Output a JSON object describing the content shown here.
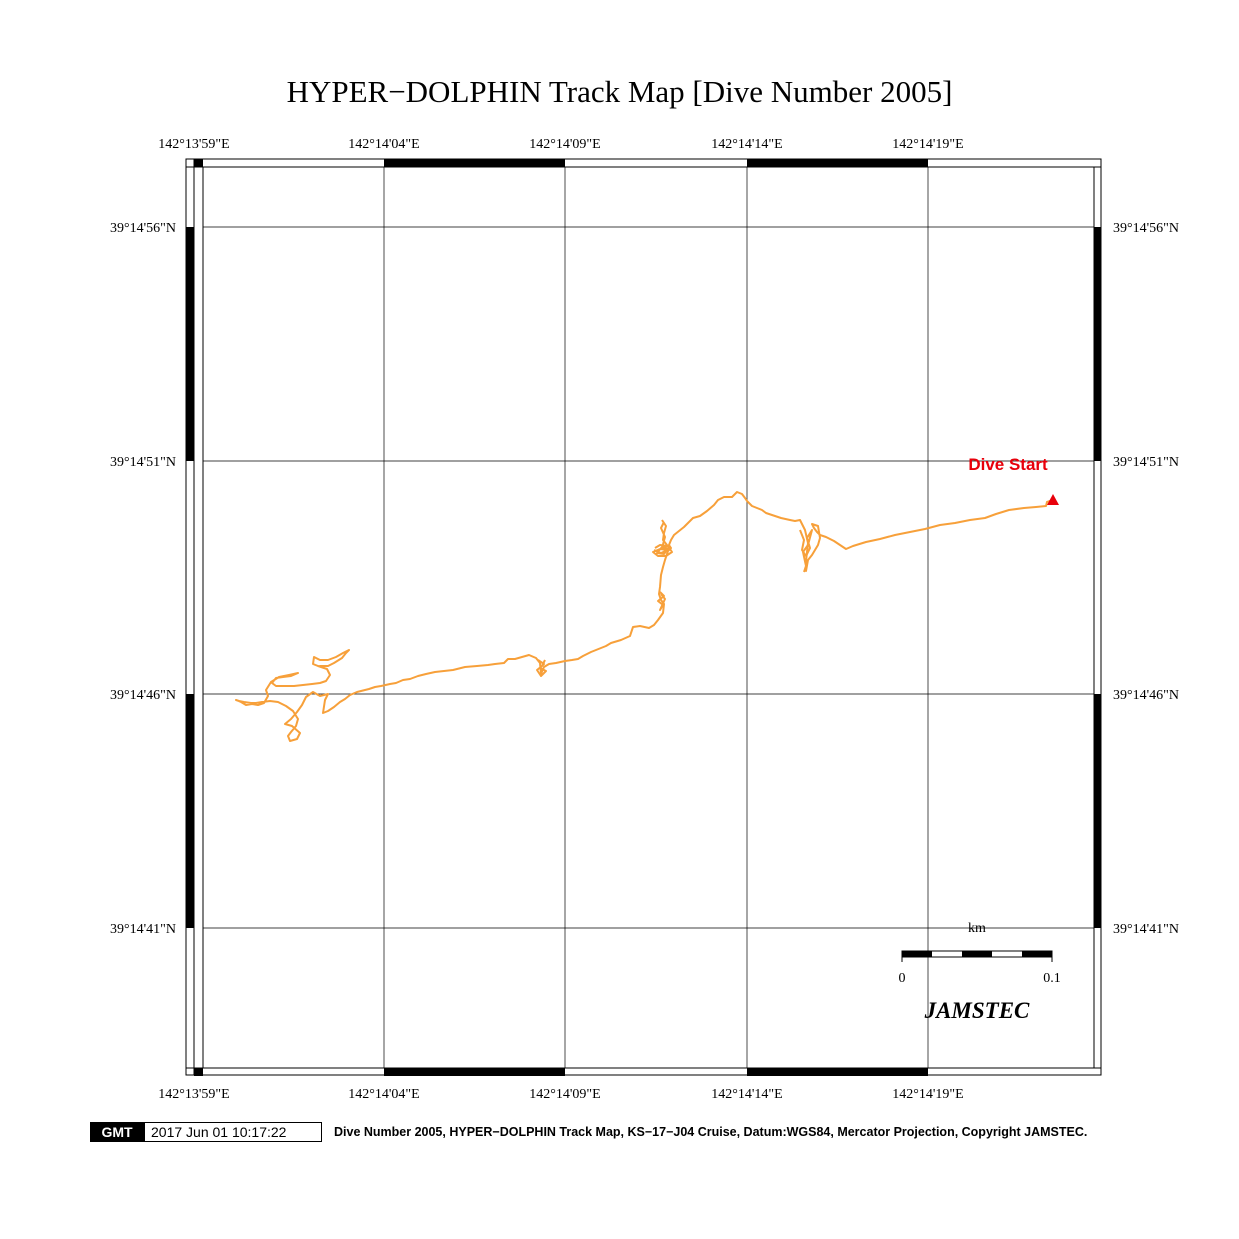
{
  "title": "HYPER−DOLPHIN Track Map [Dive Number 2005]",
  "longitude_labels": [
    "142°13'59\"E",
    "142°14'04\"E",
    "142°14'09\"E",
    "142°14'14\"E",
    "142°14'19\"E"
  ],
  "latitude_labels": [
    "39°14'56\"N",
    "39°14'51\"N",
    "39°14'46\"N",
    "39°14'41\"N"
  ],
  "dive_start_label": "Dive Start",
  "scale_bar": {
    "unit": "km",
    "min_label": "0",
    "max_label": "0.1"
  },
  "org_label": "JAMSTEC",
  "footer": {
    "logo": "GMT",
    "timestamp": "2017 Jun 01 10:17:22",
    "caption": "Dive Number 2005, HYPER−DOLPHIN Track Map, KS−17−J04 Cruise, Datum:WGS84, Mercator Projection, Copyright JAMSTEC."
  },
  "colors": {
    "track": "#f7a03a",
    "dive_start": "#e8000b",
    "grid": "#000000"
  }
}
